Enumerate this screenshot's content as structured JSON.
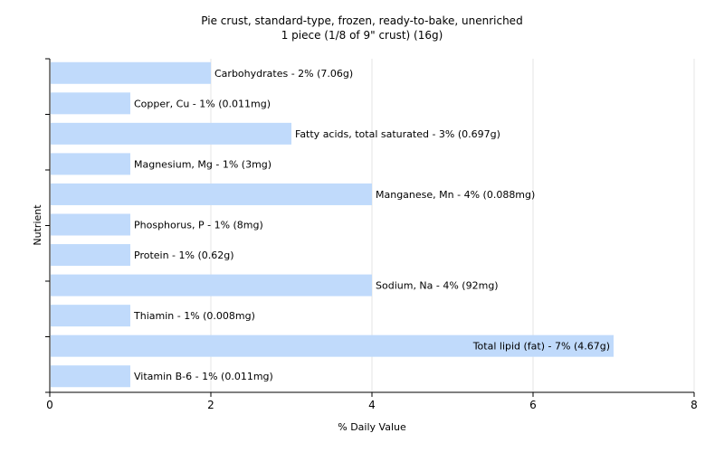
{
  "chart_data": {
    "type": "bar",
    "orientation": "horizontal",
    "title": "Pie crust, standard-type, frozen, ready-to-bake, unenriched",
    "subtitle": "1 piece (1/8 of 9\" crust) (16g)",
    "xlabel": "% Daily Value",
    "ylabel": "Nutrient",
    "xlim": [
      0,
      8
    ],
    "xticks": [
      0,
      2,
      4,
      6,
      8
    ],
    "grid": true,
    "bar_color": "#c0dafb",
    "categories": [
      "Carbohydrates",
      "Copper, Cu",
      "Fatty acids, total saturated",
      "Magnesium, Mg",
      "Manganese, Mn",
      "Phosphorus, P",
      "Protein",
      "Sodium, Na",
      "Thiamin",
      "Total lipid (fat)",
      "Vitamin B-6"
    ],
    "values": [
      2,
      1,
      3,
      1,
      4,
      1,
      1,
      4,
      1,
      7,
      1
    ],
    "labels": [
      "Carbohydrates - 2% (7.06g)",
      "Copper, Cu - 1% (0.011mg)",
      "Fatty acids, total saturated - 3% (0.697g)",
      "Magnesium, Mg - 1% (3mg)",
      "Manganese, Mn - 4% (0.088mg)",
      "Phosphorus, P - 1% (8mg)",
      "Protein - 1% (0.62g)",
      "Sodium, Na - 4% (92mg)",
      "Thiamin - 1% (0.008mg)",
      "Total lipid (fat) - 7% (4.67g)",
      "Vitamin B-6 - 1% (0.011mg)"
    ]
  }
}
